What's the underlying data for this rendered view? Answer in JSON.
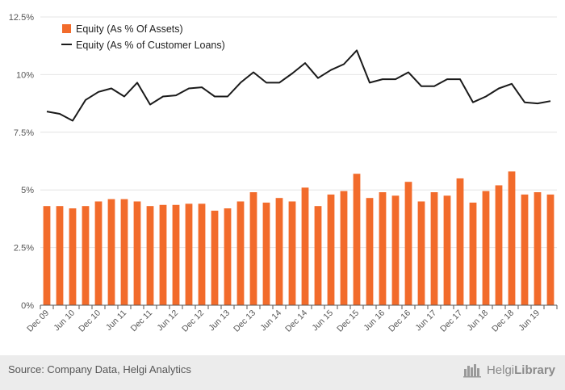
{
  "chart_data": {
    "type": "bar",
    "x_tick_labels": [
      "Dec 09",
      "Jun 10",
      "Dec 10",
      "Jun 11",
      "Dec 11",
      "Jun 12",
      "Dec 12",
      "Jun 13",
      "Dec 13",
      "Jun 14",
      "Dec 14",
      "Jun 15",
      "Dec 15",
      "Jun 16",
      "Dec 16",
      "Jun 17",
      "Dec 17",
      "Jun 18",
      "Dec 18",
      "Jun 19"
    ],
    "y_tick_labels": [
      "0%",
      "2.5%",
      "5%",
      "7.5%",
      "10%",
      "12.5%"
    ],
    "ylim": [
      0,
      12.5
    ],
    "legend_position": "top-left",
    "grid": true,
    "series": [
      {
        "name": "Equity (As % Of Assets)",
        "type": "bar",
        "color": "#f26b2b",
        "values": [
          4.3,
          4.3,
          4.2,
          4.3,
          4.5,
          4.6,
          4.6,
          4.5,
          4.3,
          4.35,
          4.35,
          4.4,
          4.4,
          4.1,
          4.2,
          4.5,
          4.9,
          4.45,
          4.65,
          4.5,
          5.1,
          4.3,
          4.8,
          4.95,
          5.7,
          4.65,
          4.9,
          4.75,
          5.35,
          4.5,
          4.9,
          4.75,
          5.5,
          4.45,
          4.95,
          5.2,
          5.8,
          4.8,
          4.9,
          4.8
        ]
      },
      {
        "name": "Equity (As % of Customer Loans)",
        "type": "line",
        "color": "#1a1a1a",
        "values": [
          8.4,
          8.3,
          8.0,
          8.9,
          9.25,
          9.4,
          9.05,
          9.65,
          8.7,
          9.05,
          9.1,
          9.4,
          9.45,
          9.05,
          9.05,
          9.65,
          10.1,
          9.65,
          9.65,
          10.05,
          10.5,
          9.85,
          10.2,
          10.45,
          11.05,
          9.65,
          9.8,
          9.8,
          10.1,
          9.5,
          9.5,
          9.8,
          9.8,
          8.8,
          9.05,
          9.4,
          9.6,
          8.8,
          8.75,
          8.85
        ]
      }
    ]
  },
  "footer": {
    "source": "Source: Company Data, Helgi Analytics",
    "brand_regular": "Helgi",
    "brand_bold": "Library"
  },
  "icons": {
    "brand_icon": "helgi-library-logo-icon"
  }
}
